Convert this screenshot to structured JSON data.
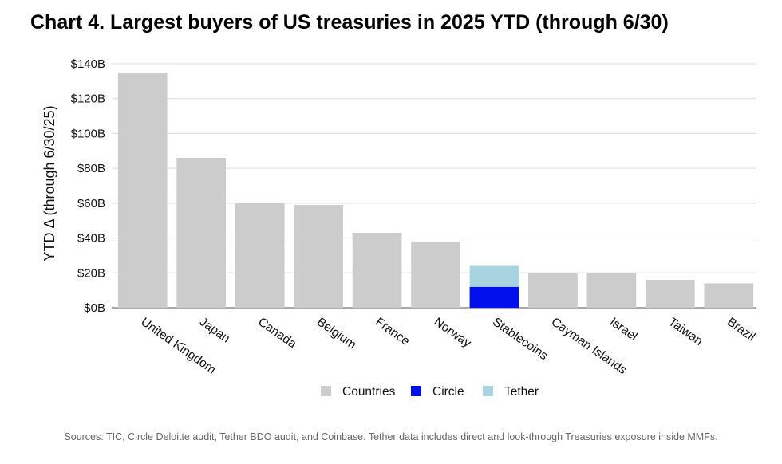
{
  "title": "Chart 4. Largest buyers of US treasuries in 2025 YTD (through 6/30)",
  "sources": "Sources: TIC, Circle Deloitte audit, Tether BDO audit, and Coinbase. Tether data includes direct and look-through Treasuries exposure inside MMFs.",
  "colors": {
    "Countries": "#cccccc",
    "Circle": "#0011ee",
    "Tether": "#a8d4e2"
  },
  "chart_data": {
    "type": "bar",
    "stacked": true,
    "ylabel": "YTD Δ (through 6/30/25)",
    "ylim": [
      0,
      140
    ],
    "y_ticks": [
      "$0B",
      "$20B",
      "$40B",
      "$60B",
      "$80B",
      "$100B",
      "$120B",
      "$140B"
    ],
    "y_tick_values": [
      0,
      20,
      40,
      60,
      80,
      100,
      120,
      140
    ],
    "grid": true,
    "legend_position": "bottom",
    "categories": [
      "United Kingdom",
      "Japan",
      "Canada",
      "Belgium",
      "France",
      "Norway",
      "Stablecoins",
      "Cayman Islands",
      "Israel",
      "Taiwan",
      "Brazil"
    ],
    "series": [
      {
        "name": "Countries",
        "values": [
          135,
          86,
          60,
          59,
          43,
          38,
          0,
          20,
          20,
          16,
          14
        ]
      },
      {
        "name": "Circle",
        "values": [
          0,
          0,
          0,
          0,
          0,
          0,
          12,
          0,
          0,
          0,
          0
        ]
      },
      {
        "name": "Tether",
        "values": [
          0,
          0,
          0,
          0,
          0,
          0,
          12,
          0,
          0,
          0,
          0
        ]
      }
    ]
  }
}
